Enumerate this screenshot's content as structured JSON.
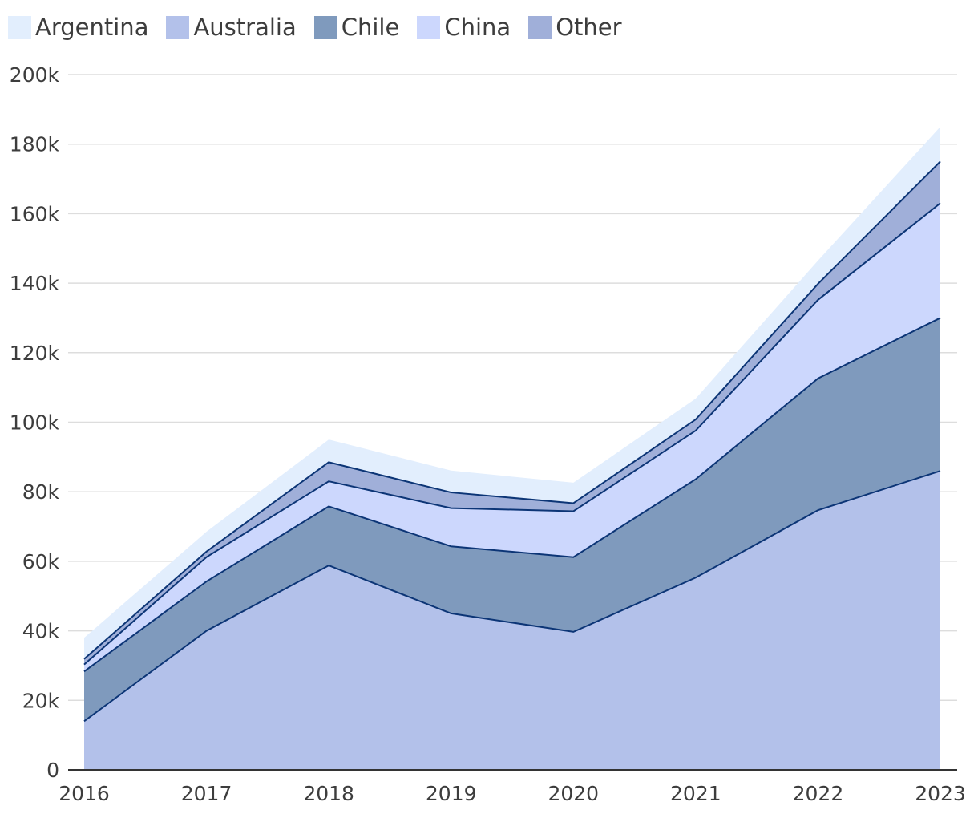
{
  "chart_data": {
    "type": "area",
    "stacked": true,
    "x": [
      "2016",
      "2017",
      "2018",
      "2019",
      "2020",
      "2021",
      "2022",
      "2023"
    ],
    "series": [
      {
        "name": "Australia",
        "color": "#b3c1ea",
        "values": [
          14000,
          40000,
          58800,
          45000,
          39700,
          55300,
          74700,
          86000
        ]
      },
      {
        "name": "Chile",
        "color": "#7f9abd",
        "values": [
          14300,
          14200,
          17000,
          19300,
          21500,
          28300,
          37900,
          44000
        ]
      },
      {
        "name": "China",
        "color": "#ccd7fd",
        "values": [
          2000,
          7000,
          7200,
          11000,
          13200,
          14000,
          22600,
          33000
        ]
      },
      {
        "name": "Other",
        "color": "#a0afd9",
        "values": [
          1600,
          1600,
          5500,
          4500,
          2300,
          3200,
          4600,
          12000
        ]
      },
      {
        "name": "Argentina",
        "color": "#e2eefd",
        "values": [
          6100,
          5700,
          6500,
          6300,
          5900,
          6000,
          6700,
          10000
        ]
      }
    ],
    "legend_order": [
      "Argentina",
      "Australia",
      "Chile",
      "China",
      "Other"
    ],
    "legend_placement": "top-left",
    "y_ticks": [
      "0",
      "20k",
      "40k",
      "60k",
      "80k",
      "100k",
      "120k",
      "140k",
      "160k",
      "180k",
      "200k"
    ],
    "ylim": [
      0,
      200000
    ],
    "grid": true,
    "line_color": "#0c3576"
  }
}
